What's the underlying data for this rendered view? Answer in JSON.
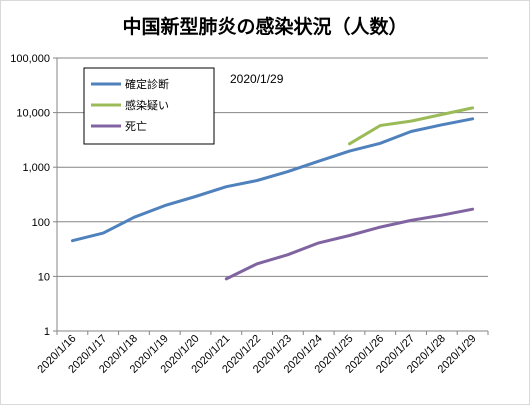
{
  "chart_data": {
    "type": "line",
    "title": "中国新型肺炎の感染状況（人数）",
    "annotation": "2020/1/29",
    "yscale": "log",
    "ylim": [
      1,
      100000
    ],
    "yticks": [
      {
        "value": 1,
        "label": "1"
      },
      {
        "value": 10,
        "label": "10"
      },
      {
        "value": 100,
        "label": "100"
      },
      {
        "value": 1000,
        "label": "1,000"
      },
      {
        "value": 10000,
        "label": "10,000"
      },
      {
        "value": 100000,
        "label": "100,000"
      }
    ],
    "gridlines": "horizontal",
    "legend_position": "top-left",
    "categories": [
      "2020/1/16",
      "2020/1/17",
      "2020/1/18",
      "2020/1/19",
      "2020/1/20",
      "2020/1/21",
      "2020/1/22",
      "2020/1/23",
      "2020/1/24",
      "2020/1/25",
      "2020/1/26",
      "2020/1/27",
      "2020/1/28",
      "2020/1/29"
    ],
    "series": [
      {
        "name": "確定診断",
        "color": "#4f81bd",
        "values": [
          45,
          62,
          121,
          198,
          291,
          440,
          571,
          830,
          1287,
          1975,
          2744,
          4515,
          5974,
          7711
        ]
      },
      {
        "name": "感染疑い",
        "color": "#9bbb59",
        "values": [
          null,
          null,
          null,
          null,
          null,
          null,
          null,
          null,
          null,
          2684,
          5794,
          6973,
          9239,
          12167
        ]
      },
      {
        "name": "死亡",
        "color": "#8064a2",
        "values": [
          null,
          null,
          null,
          null,
          null,
          9,
          17,
          25,
          41,
          56,
          80,
          106,
          132,
          170
        ]
      }
    ]
  }
}
